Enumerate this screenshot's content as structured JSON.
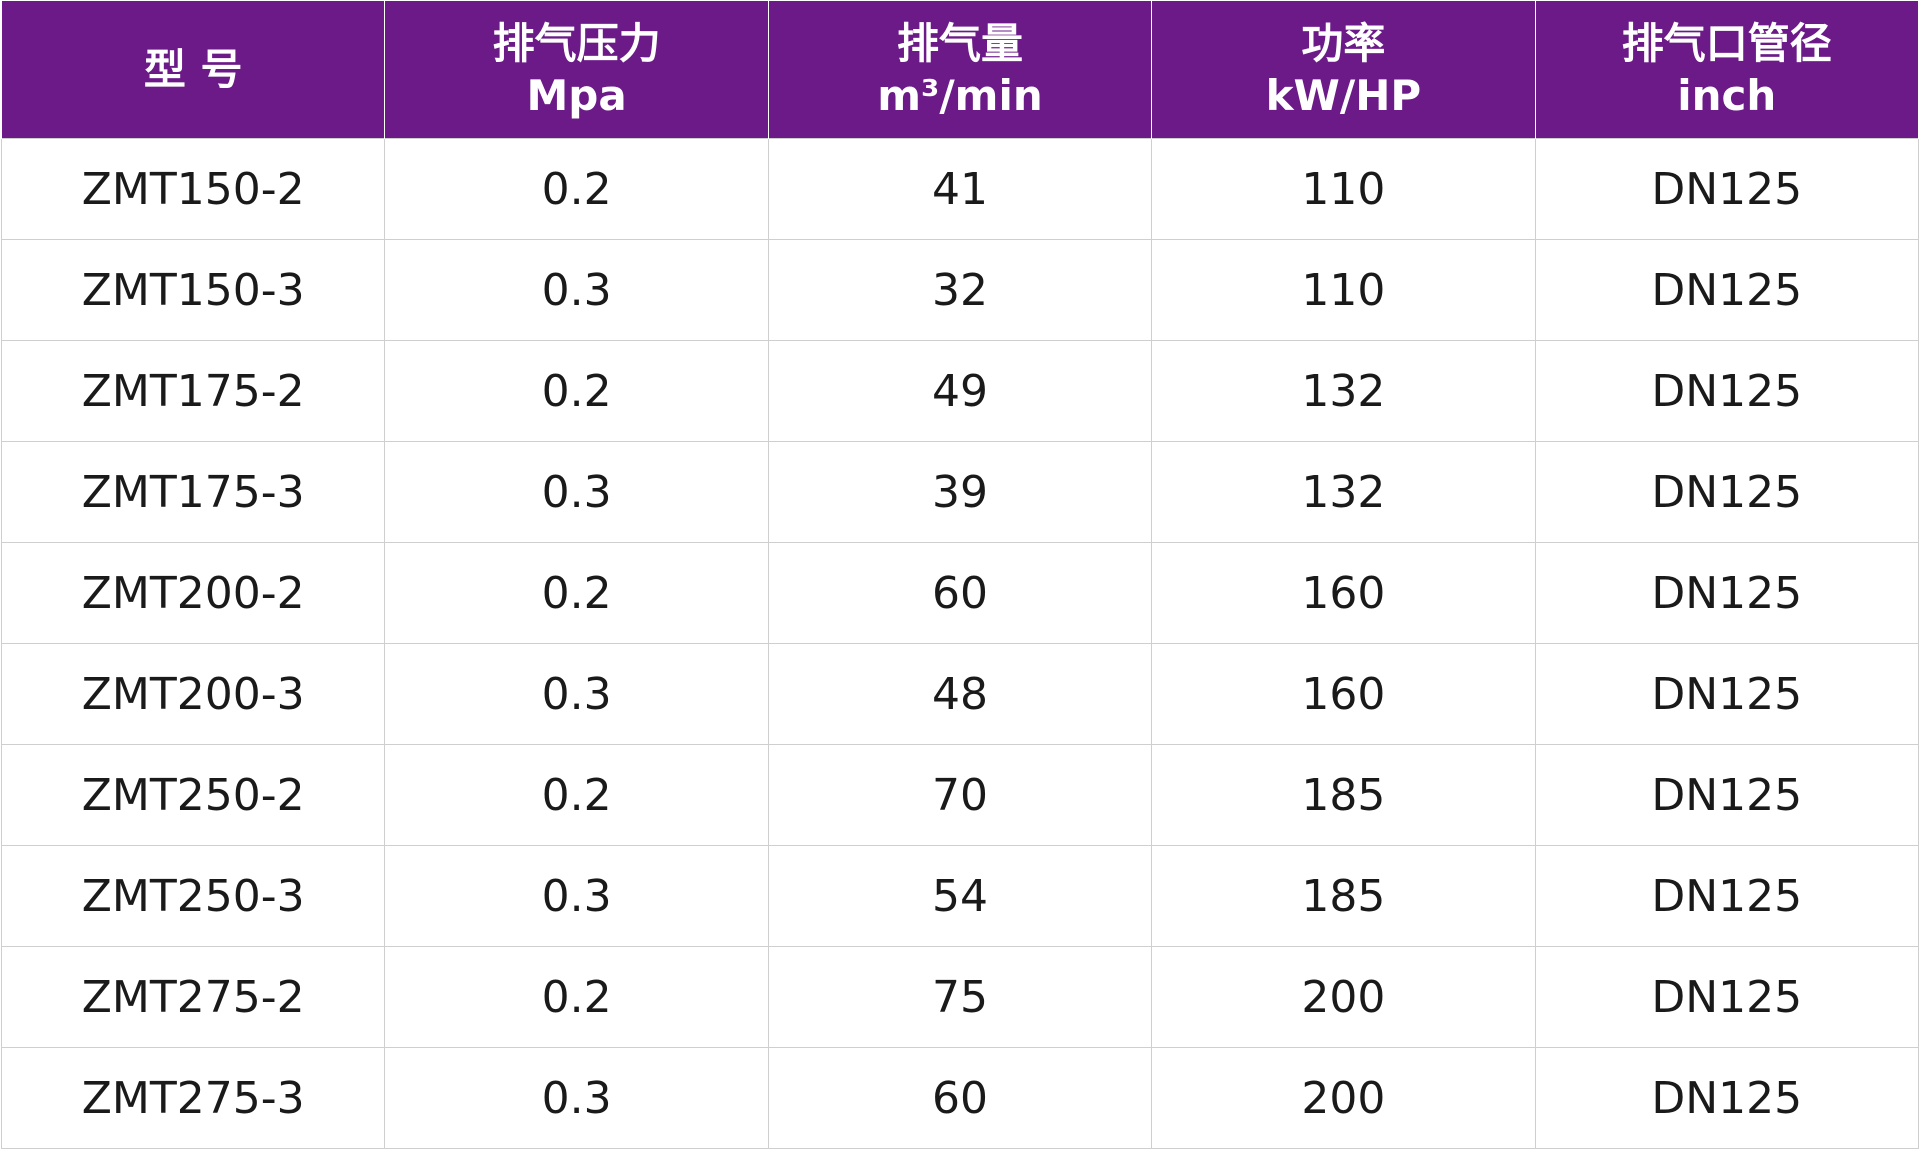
{
  "table": {
    "header": [
      [
        "型 号"
      ],
      [
        "排气压力",
        "Mpa"
      ],
      [
        "排气量",
        "m³/min"
      ],
      [
        "功率",
        "kW/HP"
      ],
      [
        "排气口管径",
        "inch"
      ]
    ],
    "rows": [
      [
        "ZMT150-2",
        "0.2",
        "41",
        "110",
        "DN125"
      ],
      [
        "ZMT150-3",
        "0.3",
        "32",
        "110",
        "DN125"
      ],
      [
        "ZMT175-2",
        "0.2",
        "49",
        "132",
        "DN125"
      ],
      [
        "ZMT175-3",
        "0.3",
        "39",
        "132",
        "DN125"
      ],
      [
        "ZMT200-2",
        "0.2",
        "60",
        "160",
        "DN125"
      ],
      [
        "ZMT200-3",
        "0.3",
        "48",
        "160",
        "DN125"
      ],
      [
        "ZMT250-2",
        "0.2",
        "70",
        "185",
        "DN125"
      ],
      [
        "ZMT250-3",
        "0.3",
        "54",
        "185",
        "DN125"
      ],
      [
        "ZMT275-2",
        "0.2",
        "75",
        "200",
        "DN125"
      ],
      [
        "ZMT275-3",
        "0.3",
        "60",
        "200",
        "DN125"
      ]
    ]
  }
}
